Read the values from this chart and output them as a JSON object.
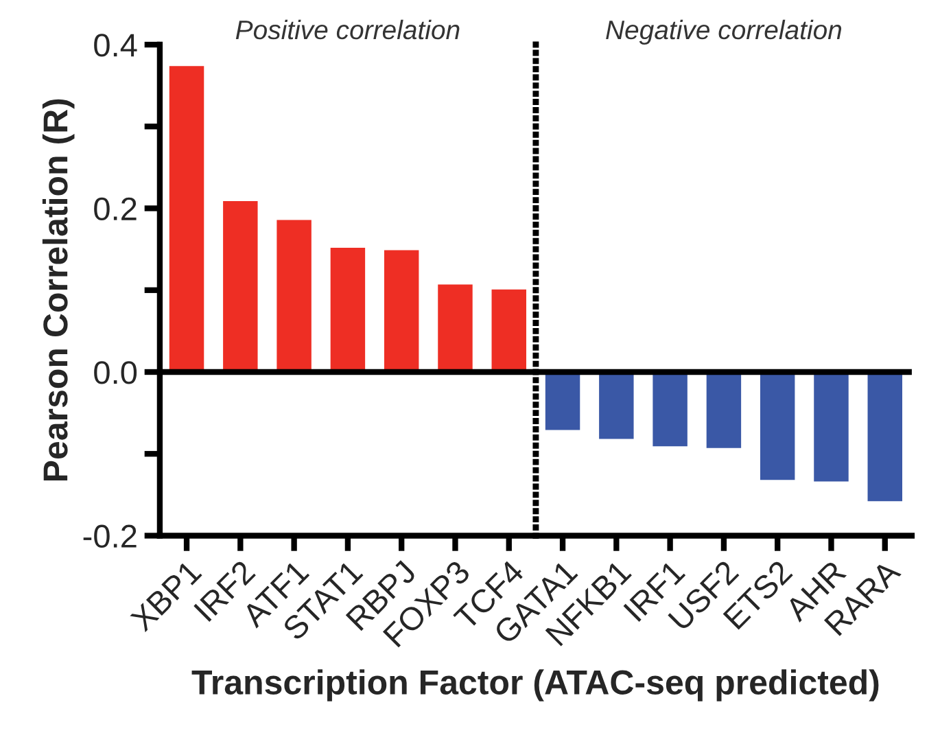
{
  "chart_data": {
    "type": "bar",
    "xlabel": "Transcription Factor (ATAC-seq predicted)",
    "ylabel": "Pearson Correlation (R)",
    "categories": [
      "XBP1",
      "IRF2",
      "ATF1",
      "STAT1",
      "RBPJ",
      "FOXP3",
      "TCF4",
      "GATA1",
      "NFKB1",
      "IRF1",
      "USF2",
      "ETS2",
      "AHR",
      "RARA"
    ],
    "values": [
      0.375,
      0.21,
      0.187,
      0.153,
      0.15,
      0.108,
      0.102,
      -0.072,
      -0.083,
      -0.092,
      -0.094,
      -0.133,
      -0.135,
      -0.159
    ],
    "colors": [
      "#ee2e24",
      "#ee2e24",
      "#ee2e24",
      "#ee2e24",
      "#ee2e24",
      "#ee2e24",
      "#ee2e24",
      "#3a58a6",
      "#3a58a6",
      "#3a58a6",
      "#3a58a6",
      "#3a58a6",
      "#3a58a6",
      "#3a58a6"
    ],
    "ylim": [
      -0.2,
      0.4
    ],
    "yticks": [
      {
        "value": -0.2,
        "label": "-0.2"
      },
      {
        "value": -0.1,
        "label": null
      },
      {
        "value": 0.0,
        "label": "0.0"
      },
      {
        "value": 0.1,
        "label": null
      },
      {
        "value": 0.2,
        "label": "0.2"
      },
      {
        "value": 0.3,
        "label": null
      },
      {
        "value": 0.4,
        "label": "0.4"
      }
    ],
    "ref_lines": [
      {
        "axis": "y",
        "value": 0,
        "color": "#000000",
        "line_style": "solid"
      }
    ],
    "annotations": [
      "Positive correlation",
      "Negative correlation"
    ],
    "grid": false
  }
}
